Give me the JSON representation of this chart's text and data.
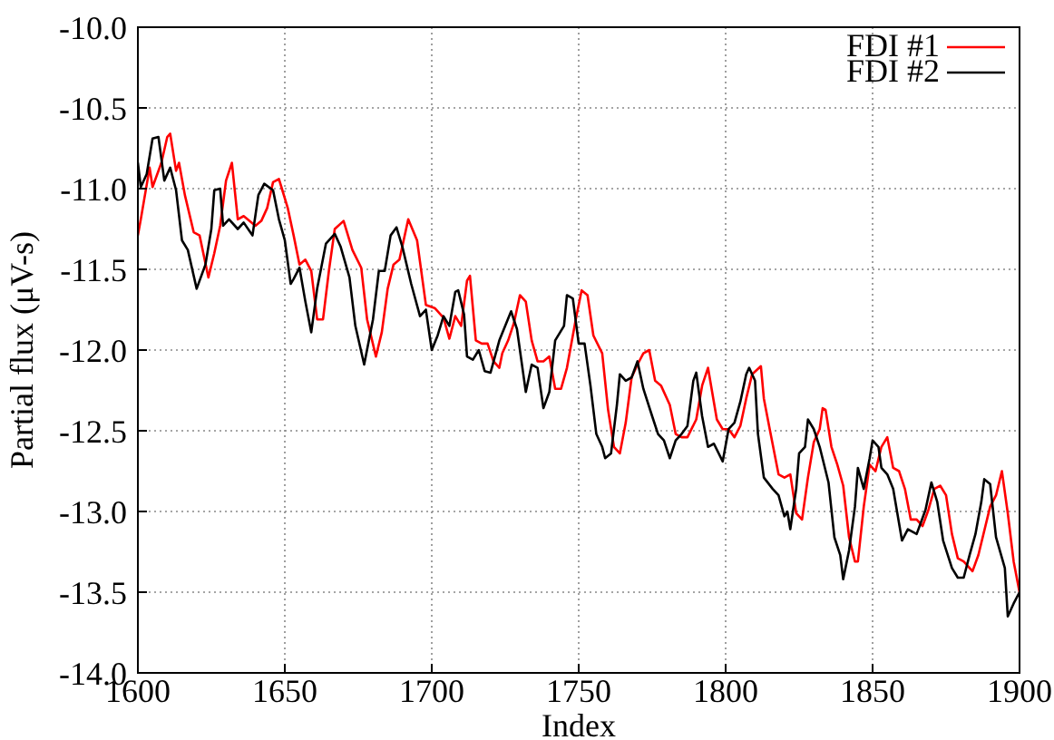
{
  "chart_data": {
    "type": "line",
    "xlabel": "Index",
    "ylabel": "Partial flux (μV-s)",
    "xlim": [
      1600,
      1900
    ],
    "xticks": [
      1600,
      1650,
      1700,
      1750,
      1800,
      1850,
      1900
    ],
    "ylim": [
      -14,
      -10
    ],
    "yticks": [
      {
        "value": -14,
        "label": "-14.0"
      },
      -13.5,
      {
        "value": -13,
        "label": "-13.0"
      },
      -12.5,
      {
        "value": -12,
        "label": "-12.0"
      },
      -11.5,
      {
        "value": -11,
        "label": "-11.0"
      },
      -10.5,
      {
        "value": -10,
        "label": "-10.0"
      }
    ],
    "grid": true,
    "legend": "top right",
    "line_style": "solid",
    "marker": "none",
    "series": [
      {
        "name": "FDI #1",
        "color": "#ff0000",
        "x": [
          1600,
          1601,
          1604,
          1605,
          1608,
          1610,
          1611,
          1613,
          1614,
          1616,
          1619,
          1621,
          1624,
          1626,
          1628,
          1630,
          1632,
          1634,
          1636,
          1640,
          1642,
          1644,
          1646,
          1648,
          1649,
          1651,
          1653,
          1655,
          1657,
          1659,
          1661,
          1663,
          1665,
          1667,
          1670,
          1673,
          1676,
          1678,
          1681,
          1683,
          1685,
          1687,
          1689,
          1692,
          1695,
          1698,
          1701,
          1704,
          1706,
          1708,
          1710,
          1712,
          1713,
          1715,
          1717,
          1719,
          1721,
          1723,
          1724,
          1726,
          1728,
          1730,
          1732,
          1734,
          1736,
          1738,
          1740,
          1742,
          1744,
          1746,
          1749,
          1751,
          1753,
          1755,
          1758,
          1760,
          1762,
          1764,
          1766,
          1768,
          1770,
          1772,
          1774,
          1776,
          1778,
          1781,
          1783,
          1785,
          1787,
          1790,
          1792,
          1794,
          1797,
          1799,
          1801,
          1803,
          1805,
          1807,
          1809,
          1812,
          1813,
          1815,
          1818,
          1820,
          1822,
          1824,
          1826,
          1828,
          1830,
          1832,
          1833,
          1834,
          1836,
          1838,
          1840,
          1842,
          1844,
          1845,
          1847,
          1849,
          1851,
          1853,
          1855,
          1857,
          1859,
          1861,
          1863,
          1865,
          1867,
          1869,
          1871,
          1873,
          1875,
          1877,
          1879,
          1881,
          1884,
          1886,
          1890,
          1892,
          1894,
          1896,
          1898,
          1900
        ],
        "values": [
          -11.29,
          -11.19,
          -10.87,
          -10.99,
          -10.84,
          -10.68,
          -10.66,
          -10.89,
          -10.84,
          -11.04,
          -11.27,
          -11.29,
          -11.55,
          -11.4,
          -11.23,
          -10.95,
          -10.84,
          -11.19,
          -11.17,
          -11.23,
          -11.2,
          -11.12,
          -10.96,
          -10.94,
          -11.0,
          -11.12,
          -11.29,
          -11.47,
          -11.44,
          -11.51,
          -11.81,
          -11.81,
          -11.51,
          -11.25,
          -11.2,
          -11.38,
          -11.49,
          -11.81,
          -12.04,
          -11.89,
          -11.62,
          -11.47,
          -11.44,
          -11.19,
          -11.32,
          -11.72,
          -11.74,
          -11.8,
          -11.93,
          -11.79,
          -11.85,
          -11.57,
          -11.54,
          -11.94,
          -11.96,
          -11.96,
          -12.07,
          -12.11,
          -12.02,
          -11.94,
          -11.83,
          -11.66,
          -11.7,
          -11.94,
          -12.07,
          -12.07,
          -12.04,
          -12.24,
          -12.24,
          -12.11,
          -11.81,
          -11.63,
          -11.66,
          -11.91,
          -12.02,
          -12.37,
          -12.6,
          -12.64,
          -12.45,
          -12.17,
          -12.09,
          -12.02,
          -12.0,
          -12.19,
          -12.22,
          -12.34,
          -12.52,
          -12.54,
          -12.54,
          -12.43,
          -12.22,
          -12.11,
          -12.43,
          -12.49,
          -12.49,
          -12.54,
          -12.47,
          -12.3,
          -12.15,
          -12.1,
          -12.3,
          -12.49,
          -12.77,
          -12.79,
          -12.77,
          -13.01,
          -13.05,
          -12.79,
          -12.57,
          -12.49,
          -12.36,
          -12.37,
          -12.6,
          -12.71,
          -12.84,
          -13.16,
          -13.31,
          -13.31,
          -12.97,
          -12.71,
          -12.75,
          -12.6,
          -12.54,
          -12.73,
          -12.75,
          -12.86,
          -13.05,
          -13.05,
          -13.09,
          -12.99,
          -12.86,
          -12.84,
          -12.9,
          -13.14,
          -13.29,
          -13.31,
          -13.37,
          -13.27,
          -12.97,
          -12.9,
          -12.75,
          -13.01,
          -13.31,
          -13.5
        ]
      },
      {
        "name": "FDI #2",
        "color": "#000000",
        "x": [
          1600,
          1601,
          1603,
          1605,
          1607,
          1609,
          1611,
          1613,
          1615,
          1617,
          1620,
          1623,
          1625,
          1626,
          1628,
          1629,
          1631,
          1634,
          1636,
          1639,
          1641,
          1643,
          1646,
          1648,
          1650,
          1652,
          1653,
          1655,
          1657,
          1659,
          1661,
          1664,
          1667,
          1669,
          1672,
          1674,
          1677,
          1680,
          1682,
          1684,
          1686,
          1688,
          1690,
          1693,
          1696,
          1698,
          1700,
          1702,
          1704,
          1706,
          1708,
          1709,
          1711,
          1712,
          1714,
          1716,
          1718,
          1720,
          1723,
          1725,
          1727,
          1729,
          1732,
          1734,
          1736,
          1738,
          1740,
          1742,
          1745,
          1746,
          1748,
          1750,
          1752,
          1754,
          1756,
          1758,
          1759,
          1761,
          1763,
          1764,
          1766,
          1768,
          1770,
          1772,
          1775,
          1777,
          1779,
          1781,
          1783,
          1785,
          1787,
          1789,
          1790,
          1792,
          1794,
          1796,
          1799,
          1801,
          1803,
          1805,
          1807,
          1808,
          1810,
          1811,
          1813,
          1816,
          1818,
          1820,
          1821,
          1822,
          1824,
          1825,
          1827,
          1828,
          1830,
          1832,
          1835,
          1837,
          1839,
          1840,
          1842,
          1844,
          1845,
          1847,
          1849,
          1850,
          1852,
          1853,
          1855,
          1857,
          1860,
          1862,
          1865,
          1868,
          1870,
          1872,
          1874,
          1877,
          1879,
          1881,
          1883,
          1885,
          1887,
          1888,
          1890,
          1892,
          1895,
          1896,
          1898,
          1900
        ],
        "values": [
          -10.84,
          -10.99,
          -10.91,
          -10.69,
          -10.68,
          -10.95,
          -10.87,
          -11.01,
          -11.32,
          -11.38,
          -11.62,
          -11.47,
          -11.25,
          -11.01,
          -11.0,
          -11.23,
          -11.19,
          -11.25,
          -11.21,
          -11.29,
          -11.04,
          -10.97,
          -11.01,
          -11.19,
          -11.32,
          -11.59,
          -11.56,
          -11.49,
          -11.7,
          -11.89,
          -11.62,
          -11.34,
          -11.28,
          -11.36,
          -11.55,
          -11.85,
          -12.09,
          -11.81,
          -11.51,
          -11.51,
          -11.29,
          -11.24,
          -11.36,
          -11.59,
          -11.79,
          -11.75,
          -12.0,
          -11.91,
          -11.79,
          -11.85,
          -11.64,
          -11.63,
          -11.78,
          -12.04,
          -12.06,
          -12.0,
          -12.13,
          -12.14,
          -11.94,
          -11.85,
          -11.76,
          -11.87,
          -12.26,
          -12.09,
          -12.11,
          -12.36,
          -12.26,
          -11.94,
          -11.85,
          -11.66,
          -11.68,
          -11.96,
          -11.96,
          -12.22,
          -12.52,
          -12.6,
          -12.67,
          -12.64,
          -12.34,
          -12.15,
          -12.19,
          -12.17,
          -12.07,
          -12.24,
          -12.41,
          -12.52,
          -12.56,
          -12.67,
          -12.56,
          -12.52,
          -12.47,
          -12.19,
          -12.14,
          -12.41,
          -12.6,
          -12.58,
          -12.69,
          -12.49,
          -12.45,
          -12.32,
          -12.15,
          -12.11,
          -12.19,
          -12.52,
          -12.79,
          -12.86,
          -12.9,
          -13.03,
          -13.0,
          -13.11,
          -12.86,
          -12.64,
          -12.6,
          -12.43,
          -12.49,
          -12.6,
          -12.82,
          -13.16,
          -13.27,
          -13.42,
          -13.24,
          -12.97,
          -12.73,
          -12.86,
          -12.67,
          -12.56,
          -12.6,
          -12.73,
          -12.77,
          -12.86,
          -13.18,
          -13.11,
          -13.14,
          -12.99,
          -12.82,
          -12.94,
          -13.18,
          -13.35,
          -13.41,
          -13.41,
          -13.27,
          -13.14,
          -12.94,
          -12.8,
          -12.83,
          -13.16,
          -13.35,
          -13.65,
          -13.57,
          -13.5
        ]
      }
    ]
  }
}
